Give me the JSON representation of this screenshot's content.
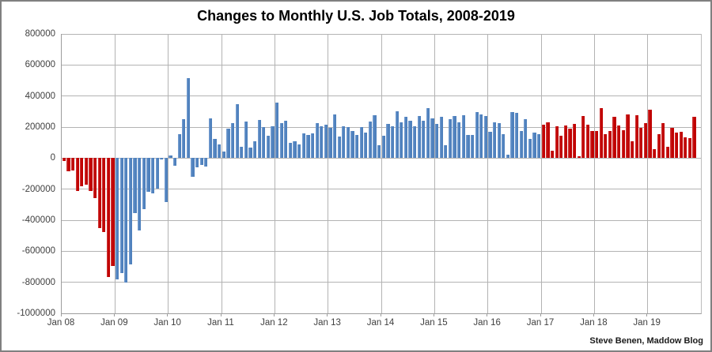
{
  "title": "Changes to Monthly U.S. Job Totals, 2008-2019",
  "attribution": "Steve Benen, Maddow Blog",
  "colors": {
    "republican_red": "#c00000",
    "republican_red_light": "#d24444",
    "democrat_blue": "#4f81bd",
    "democrat_blue_light": "#7da3d4",
    "gridline": "#b3b3b3",
    "axis_line": "#9d9d9d",
    "label_text": "#3f3f3f",
    "outer_border": "#808080",
    "background": "#ffffff"
  },
  "chart_data": {
    "type": "bar",
    "title": "Changes to Monthly U.S. Job Totals, 2008-2019",
    "xlabel": "",
    "ylabel": "",
    "x_start": "2008-01",
    "x_frequency": "monthly",
    "x_total_slots": 144,
    "ylim": [
      -1000000,
      800000
    ],
    "y_tick_step": 200000,
    "grid": true,
    "legend": false,
    "y_ticks": [
      800000,
      600000,
      400000,
      200000,
      0,
      -200000,
      -400000,
      -600000,
      -800000,
      -1000000
    ],
    "x_tick_labels": [
      "Jan 08",
      "Jan 09",
      "Jan 10",
      "Jan 11",
      "Jan 12",
      "Jan 13",
      "Jan 14",
      "Jan 15",
      "Jan 16",
      "Jan 17",
      "Jan 18",
      "Jan 19"
    ],
    "x_tick_month_indices": [
      0,
      12,
      24,
      36,
      48,
      60,
      72,
      84,
      96,
      108,
      120,
      132
    ],
    "values": [
      -17000,
      -86000,
      -80000,
      -214000,
      -182000,
      -172000,
      -210000,
      -259000,
      -452000,
      -474000,
      -765000,
      -697000,
      -783000,
      -743000,
      -800000,
      -687000,
      -354000,
      -467000,
      -327000,
      -216000,
      -227000,
      -198000,
      -6000,
      -283000,
      18000,
      -50000,
      156000,
      251000,
      516000,
      -122000,
      -61000,
      -42000,
      -52000,
      257000,
      123000,
      88000,
      42000,
      188000,
      225000,
      346000,
      73000,
      235000,
      70000,
      107000,
      246000,
      202000,
      146000,
      207000,
      360000,
      226000,
      243000,
      96000,
      110000,
      88000,
      160000,
      150000,
      161000,
      225000,
      203000,
      214000,
      197000,
      280000,
      141000,
      203000,
      199000,
      177000,
      149000,
      202000,
      164000,
      237000,
      274000,
      84000,
      144000,
      222000,
      203000,
      304000,
      229000,
      267000,
      243000,
      203000,
      271000,
      243000,
      321000,
      256000,
      221000,
      265000,
      84000,
      251000,
      273000,
      228000,
      277000,
      150000,
      149000,
      295000,
      280000,
      271000,
      168000,
      233000,
      225000,
      153000,
      24000,
      297000,
      291000,
      176000,
      249000,
      124000,
      164000,
      155000,
      216000,
      232000,
      50000,
      207000,
      145000,
      210000,
      189000,
      221000,
      14000,
      271000,
      216000,
      175000,
      176000,
      324000,
      155000,
      175000,
      268000,
      208000,
      178000,
      282000,
      108000,
      277000,
      196000,
      227000,
      312000,
      56000,
      153000,
      224000,
      72000,
      193000,
      164000,
      168000,
      136000,
      128000,
      266000
    ],
    "color_segments": [
      {
        "name": "bush-administration",
        "from_index": 0,
        "to_index": 11,
        "color": "#c00000"
      },
      {
        "name": "obama-administration",
        "from_index": 12,
        "to_index": 107,
        "color": "#4f81bd"
      },
      {
        "name": "trump-administration",
        "from_index": 108,
        "to_index": 142,
        "color": "#c00000"
      }
    ]
  }
}
